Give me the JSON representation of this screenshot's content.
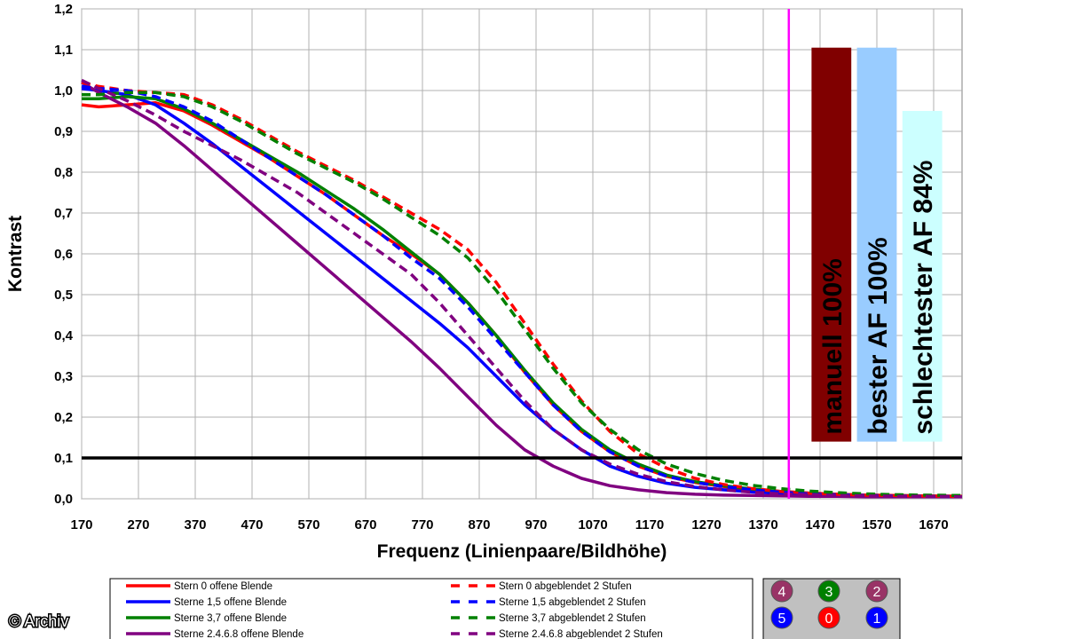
{
  "credit": "© Archiv",
  "chart_data": {
    "type": "line",
    "xlabel": "Frequenz (Linienpaare/Bildhöhe)",
    "ylabel": "Kontrast",
    "xlim": [
      170,
      1720
    ],
    "ylim": [
      0,
      1.2
    ],
    "x_ticks": [
      "170",
      "270",
      "370",
      "470",
      "570",
      "670",
      "770",
      "870",
      "970",
      "1070",
      "1170",
      "1270",
      "1370",
      "1470",
      "1570",
      "1670"
    ],
    "y_ticks": [
      "0,0",
      "0,1",
      "0,2",
      "0,3",
      "0,4",
      "0,5",
      "0,6",
      "0,7",
      "0,8",
      "0,9",
      "1,0",
      "1,1",
      "1,2"
    ],
    "grid": true,
    "reference_line_y": 0.1,
    "marker_line_x": 1415,
    "bars": [
      {
        "label": "manuell 100%",
        "x_start": 1455,
        "x_end": 1525,
        "value": 1.105,
        "color": "#800000"
      },
      {
        "label": "bester AF 100%",
        "x_start": 1535,
        "x_end": 1605,
        "value": 1.105,
        "color": "#99ccff"
      },
      {
        "label": "schlechtester AF 84%",
        "x_start": 1615,
        "x_end": 1685,
        "value": 0.95,
        "color": "#ccffff"
      }
    ],
    "series": [
      {
        "name": "Stern 0 offene Blende",
        "color": "#ff0000",
        "dashed": false,
        "x": [
          170,
          200,
          250,
          300,
          350,
          400,
          450,
          500,
          550,
          600,
          650,
          700,
          750,
          800,
          850,
          900,
          950,
          1000,
          1050,
          1100,
          1150,
          1200,
          1250,
          1300,
          1350,
          1400,
          1450,
          1500,
          1550,
          1600,
          1650,
          1720
        ],
        "y": [
          0.965,
          0.96,
          0.965,
          0.97,
          0.95,
          0.915,
          0.875,
          0.835,
          0.79,
          0.745,
          0.695,
          0.645,
          0.6,
          0.55,
          0.48,
          0.4,
          0.31,
          0.23,
          0.165,
          0.115,
          0.08,
          0.055,
          0.04,
          0.03,
          0.022,
          0.016,
          0.012,
          0.01,
          0.008,
          0.007,
          0.006,
          0.005
        ]
      },
      {
        "name": "Sterne 1,5 offene Blende",
        "color": "#0000ff",
        "dashed": false,
        "x": [
          170,
          200,
          250,
          300,
          350,
          400,
          450,
          500,
          550,
          600,
          650,
          700,
          750,
          800,
          850,
          900,
          950,
          1000,
          1050,
          1100,
          1150,
          1200,
          1250,
          1300,
          1350,
          1400,
          1450,
          1500,
          1550,
          1600,
          1650,
          1720
        ],
        "y": [
          1.005,
          1.0,
          0.99,
          0.965,
          0.92,
          0.87,
          0.815,
          0.76,
          0.705,
          0.65,
          0.595,
          0.54,
          0.485,
          0.43,
          0.37,
          0.3,
          0.23,
          0.17,
          0.12,
          0.08,
          0.055,
          0.038,
          0.028,
          0.022,
          0.017,
          0.013,
          0.01,
          0.008,
          0.007,
          0.006,
          0.005,
          0.005
        ]
      },
      {
        "name": "Sterne 3,7 offene Blende",
        "color": "#008000",
        "dashed": false,
        "x": [
          170,
          200,
          250,
          300,
          350,
          400,
          450,
          500,
          550,
          600,
          650,
          700,
          750,
          800,
          850,
          900,
          950,
          1000,
          1050,
          1100,
          1150,
          1200,
          1250,
          1300,
          1350,
          1400,
          1450,
          1500,
          1550,
          1600,
          1650,
          1720
        ],
        "y": [
          0.98,
          0.98,
          0.985,
          0.98,
          0.955,
          0.92,
          0.88,
          0.84,
          0.8,
          0.755,
          0.71,
          0.66,
          0.605,
          0.55,
          0.48,
          0.4,
          0.315,
          0.235,
          0.17,
          0.12,
          0.085,
          0.058,
          0.042,
          0.032,
          0.024,
          0.018,
          0.014,
          0.011,
          0.009,
          0.008,
          0.007,
          0.006
        ]
      },
      {
        "name": "Sterne 2,4,6,8 offene Blende",
        "color": "#800080",
        "dashed": false,
        "x": [
          170,
          200,
          250,
          300,
          350,
          400,
          450,
          500,
          550,
          600,
          650,
          700,
          750,
          800,
          850,
          900,
          950,
          1000,
          1050,
          1100,
          1150,
          1200,
          1250,
          1300,
          1350,
          1400,
          1450,
          1500,
          1550,
          1600,
          1650,
          1720
        ],
        "y": [
          1.02,
          0.995,
          0.96,
          0.92,
          0.865,
          0.805,
          0.745,
          0.685,
          0.625,
          0.565,
          0.505,
          0.445,
          0.385,
          0.32,
          0.25,
          0.18,
          0.12,
          0.08,
          0.05,
          0.032,
          0.022,
          0.015,
          0.011,
          0.009,
          0.008,
          0.007,
          0.006,
          0.006,
          0.005,
          0.005,
          0.005,
          0.005
        ]
      },
      {
        "name": "Stern 0 abgeblendet 2 Stufen",
        "color": "#ff0000",
        "dashed": true,
        "x": [
          170,
          200,
          250,
          300,
          350,
          400,
          450,
          500,
          550,
          600,
          650,
          700,
          750,
          800,
          850,
          900,
          950,
          1000,
          1050,
          1100,
          1150,
          1200,
          1250,
          1300,
          1350,
          1400,
          1450,
          1500,
          1550,
          1600,
          1650,
          1720
        ],
        "y": [
          1.02,
          1.01,
          1.0,
          0.995,
          0.99,
          0.965,
          0.93,
          0.89,
          0.85,
          0.815,
          0.78,
          0.74,
          0.7,
          0.66,
          0.61,
          0.53,
          0.43,
          0.33,
          0.24,
          0.165,
          0.11,
          0.075,
          0.05,
          0.035,
          0.025,
          0.018,
          0.014,
          0.011,
          0.009,
          0.008,
          0.007,
          0.006
        ]
      },
      {
        "name": "Sterne 1,5 abgeblendet 2 Stufen",
        "color": "#0000ff",
        "dashed": true,
        "x": [
          170,
          200,
          250,
          300,
          350,
          400,
          450,
          500,
          550,
          600,
          650,
          700,
          750,
          800,
          850,
          900,
          950,
          1000,
          1050,
          1100,
          1150,
          1200,
          1250,
          1300,
          1350,
          1400,
          1450,
          1500,
          1550,
          1600,
          1650,
          1720
        ],
        "y": [
          1.01,
          1.005,
          1.0,
          0.985,
          0.96,
          0.925,
          0.88,
          0.835,
          0.79,
          0.745,
          0.695,
          0.645,
          0.59,
          0.54,
          0.47,
          0.39,
          0.31,
          0.23,
          0.165,
          0.115,
          0.08,
          0.055,
          0.04,
          0.03,
          0.022,
          0.016,
          0.012,
          0.01,
          0.008,
          0.007,
          0.006,
          0.005
        ]
      },
      {
        "name": "Sterne 3,7 abgeblendet 2 Stufen",
        "color": "#008000",
        "dashed": true,
        "x": [
          170,
          200,
          250,
          300,
          350,
          400,
          450,
          500,
          550,
          600,
          650,
          700,
          750,
          800,
          850,
          900,
          950,
          1000,
          1050,
          1100,
          1150,
          1200,
          1250,
          1300,
          1350,
          1400,
          1450,
          1500,
          1550,
          1600,
          1650,
          1720
        ],
        "y": [
          0.99,
          0.99,
          0.995,
          0.995,
          0.985,
          0.96,
          0.925,
          0.885,
          0.845,
          0.81,
          0.775,
          0.735,
          0.69,
          0.645,
          0.59,
          0.51,
          0.415,
          0.32,
          0.235,
          0.17,
          0.12,
          0.085,
          0.062,
          0.045,
          0.033,
          0.025,
          0.019,
          0.015,
          0.012,
          0.01,
          0.009,
          0.008
        ]
      },
      {
        "name": "Sterne 2,4,6,8 abgeblendet 2 Stufen",
        "color": "#800080",
        "dashed": true,
        "x": [
          170,
          200,
          250,
          300,
          350,
          400,
          450,
          500,
          550,
          600,
          650,
          700,
          750,
          800,
          850,
          900,
          950,
          1000,
          1050,
          1100,
          1150,
          1200,
          1250,
          1300,
          1350,
          1400,
          1450,
          1500,
          1550,
          1600,
          1650,
          1720
        ],
        "y": [
          1.025,
          1.005,
          0.975,
          0.94,
          0.9,
          0.865,
          0.83,
          0.79,
          0.75,
          0.7,
          0.65,
          0.6,
          0.55,
          0.48,
          0.4,
          0.32,
          0.24,
          0.17,
          0.12,
          0.085,
          0.06,
          0.042,
          0.03,
          0.022,
          0.016,
          0.012,
          0.01,
          0.008,
          0.007,
          0.006,
          0.006,
          0.005
        ]
      }
    ],
    "legend": {
      "placement": "bottom",
      "entries": [
        "Stern 0 offene Blende",
        "Sterne 1,5 offene Blende",
        "Sterne 3,7 offene Blende",
        "Sterne 2.4.6.8 offene Blende",
        "Stern 0 abgeblendet 2 Stufen",
        "Sterne 1,5 abgeblendet 2 Stufen",
        "Sterne 3,7 abgeblendet 2 Stufen",
        "Sterne 2.4.6.8 abgeblendet 2 Stufen"
      ]
    },
    "star_key": {
      "rows": [
        [
          {
            "label": "4",
            "color": "#993366"
          },
          {
            "label": "3",
            "color": "#008000"
          },
          {
            "label": "2",
            "color": "#993366"
          }
        ],
        [
          {
            "label": "5",
            "color": "#0000ff"
          },
          {
            "label": "0",
            "color": "#ff0000"
          },
          {
            "label": "1",
            "color": "#0000ff"
          }
        ]
      ]
    }
  }
}
